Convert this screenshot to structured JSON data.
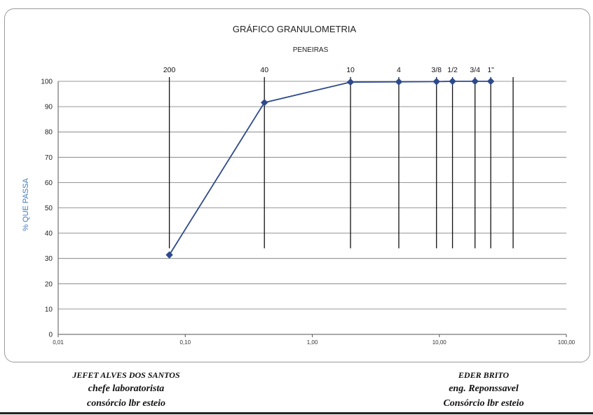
{
  "chart_data": {
    "type": "line",
    "title": "GRÁFICO GRANULOMETRIA",
    "subtitle": "PENEIRAS",
    "ylabel": "% QUE PASSA",
    "xlabel": "",
    "x_scale": "log",
    "xlim": [
      0.01,
      100
    ],
    "ylim": [
      0,
      100
    ],
    "x_tick_labels": [
      "0,01",
      "0,10",
      "1,00",
      "10,00",
      "100,00"
    ],
    "x_tick_values": [
      0.01,
      0.1,
      1,
      10,
      100
    ],
    "y_ticks": [
      0,
      10,
      20,
      30,
      40,
      50,
      60,
      70,
      80,
      90,
      100
    ],
    "grid": true,
    "sieves": [
      {
        "label": "200",
        "size": 0.075
      },
      {
        "label": "40",
        "size": 0.42
      },
      {
        "label": "10",
        "size": 2.0
      },
      {
        "label": "4",
        "size": 4.8
      },
      {
        "label": "3/8",
        "size": 9.5
      },
      {
        "label": "1/2",
        "size": 12.7
      },
      {
        "label": "3/4",
        "size": 19.1
      },
      {
        "label": "1\"",
        "size": 25.4
      },
      {
        "label": "",
        "size": 38.1
      }
    ],
    "series": [
      {
        "x": [
          0.075,
          0.42,
          2.0,
          4.8,
          9.5,
          12.7,
          19.1,
          25.4
        ],
        "y": [
          31.4,
          91.6,
          99.7,
          99.8,
          99.9,
          100,
          100,
          100
        ]
      }
    ],
    "colors": {
      "series": "#2e4a8c",
      "ylabel": "#3f79c0",
      "grid": "#777777",
      "sieve": "#111111"
    }
  },
  "signatures": {
    "left": {
      "name": "JEFET ALVES DOS SANTOS",
      "role": "chefe laboratorista",
      "org": "consórcio lbr esteio"
    },
    "right": {
      "name": "EDER BRITO",
      "role": "eng. Reponssavel",
      "org": "Consórcio lbr esteio"
    }
  }
}
